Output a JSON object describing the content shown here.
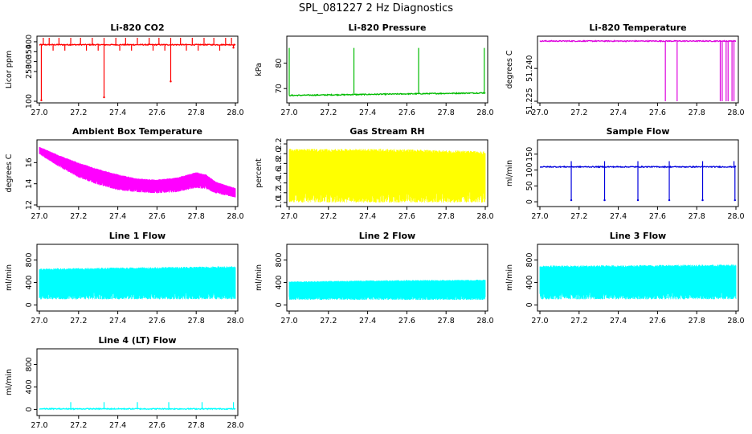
{
  "main_title": "SPL_081227  2 Hz Diagnostics",
  "chart_data": [
    {
      "type": "line",
      "title": "Li-820 CO2",
      "ylabel": "Licor ppm",
      "color": "#ff0000",
      "xlim": [
        27.0,
        28.0
      ],
      "ylim": [
        100,
        420
      ],
      "x_ticks": [
        "27.0",
        "27.2",
        "27.4",
        "27.6",
        "27.8",
        "28.0"
      ],
      "y_ticks": [
        100,
        250,
        300,
        350,
        400
      ],
      "y_tick_labels": [
        "100",
        "250",
        "300",
        "350",
        "400"
      ],
      "style": "baseline_with_spikes",
      "series": [
        {
          "name": "Li-820 CO2",
          "baseline": 385,
          "upper_spikes": [
            27.02,
            27.05,
            27.1,
            27.16,
            27.21,
            27.27,
            27.33,
            27.39,
            27.44,
            27.5,
            27.56,
            27.61,
            27.67,
            27.72,
            27.78,
            27.84,
            27.89,
            27.95,
            27.98
          ],
          "upper_spike_value": 420,
          "lower_spikes": [
            27.07,
            27.13,
            27.24,
            27.3,
            27.41,
            27.47,
            27.58,
            27.64,
            27.75,
            27.81,
            27.92
          ],
          "lower_spike_value": 355,
          "deep_dips": [
            [
              27.01,
              105
            ],
            [
              27.33,
              120
            ],
            [
              27.67,
              200
            ],
            [
              27.99,
              370
            ]
          ]
        }
      ]
    },
    {
      "type": "line",
      "title": "Li-820 Pressure",
      "ylabel": "kPa",
      "color": "#00bb00",
      "xlim": [
        27.0,
        28.0
      ],
      "ylim": [
        65,
        90
      ],
      "x_ticks": [
        "27.0",
        "27.2",
        "27.4",
        "27.6",
        "27.8",
        "28.0"
      ],
      "y_ticks": [
        70,
        80
      ],
      "y_tick_labels": [
        "70",
        "80"
      ],
      "style": "baseline_with_spikes",
      "series": [
        {
          "name": "Li-820 Pressure",
          "baseline": 67.3,
          "baseline_end": 68.3,
          "upper_spikes": [
            27.0,
            27.33,
            27.66,
            27.995
          ],
          "upper_spike_value": 86,
          "lower_spikes": [],
          "lower_spike_value": 67,
          "deep_dips": []
        }
      ]
    },
    {
      "type": "line",
      "title": "Li-820 Temperature",
      "ylabel": "degrees C",
      "color": "#dd00dd",
      "xlim": [
        27.0,
        28.0
      ],
      "ylim": [
        51.225,
        51.254
      ],
      "x_ticks": [
        "27.0",
        "27.2",
        "27.4",
        "27.6",
        "27.8",
        "28.0"
      ],
      "y_ticks": [
        51.225,
        51.24
      ],
      "y_tick_labels": [
        "51.225",
        "51.240"
      ],
      "style": "baseline_with_spikes",
      "series": [
        {
          "name": "Li-820 Temperature",
          "baseline": 51.2525,
          "upper_spikes": [],
          "upper_spike_value": 51.2525,
          "lower_spikes": [
            27.64,
            27.7,
            27.92,
            27.93,
            27.95,
            27.96,
            27.98,
            27.99
          ],
          "lower_spike_value": 51.225,
          "deep_dips": []
        }
      ]
    },
    {
      "type": "area",
      "title": "Ambient Box Temperature",
      "ylabel": "degrees C",
      "color": "#ff00ff",
      "xlim": [
        27.0,
        28.0
      ],
      "ylim": [
        12,
        18
      ],
      "x_ticks": [
        "27.0",
        "27.2",
        "27.4",
        "27.6",
        "27.8",
        "28.0"
      ],
      "y_ticks": [
        12,
        14,
        16
      ],
      "y_tick_labels": [
        "12",
        "14",
        "16"
      ],
      "style": "band",
      "series": [
        {
          "name": "Ambient Box Temperature",
          "x": [
            27.0,
            27.1,
            27.2,
            27.3,
            27.4,
            27.5,
            27.6,
            27.7,
            27.8,
            27.85,
            27.9,
            28.0
          ],
          "upper": [
            17.5,
            16.7,
            16.0,
            15.4,
            14.9,
            14.5,
            14.4,
            14.6,
            15.1,
            14.9,
            14.2,
            13.6
          ],
          "lower": [
            16.8,
            15.6,
            14.6,
            13.9,
            13.4,
            13.2,
            13.1,
            13.2,
            13.6,
            13.5,
            13.1,
            12.7
          ]
        }
      ]
    },
    {
      "type": "area",
      "title": "Gas Stream RH",
      "ylabel": "percent",
      "color": "#ffff00",
      "xlim": [
        27.0,
        28.0
      ],
      "ylim": [
        0.95,
        2.25
      ],
      "x_ticks": [
        "27.0",
        "27.2",
        "27.4",
        "27.6",
        "27.8",
        "28.0"
      ],
      "y_ticks": [
        1.0,
        1.2,
        1.4,
        1.6,
        1.8,
        2.0,
        2.2
      ],
      "y_tick_labels": [
        "1.0",
        "1.2",
        "1.4",
        "1.6",
        "1.8",
        "2.0",
        "2.2"
      ],
      "style": "band",
      "series": [
        {
          "name": "Gas Stream RH",
          "x": [
            27.0,
            27.5,
            28.0
          ],
          "upper": [
            2.1,
            2.1,
            2.05
          ],
          "lower": [
            1.0,
            1.0,
            1.0
          ]
        }
      ]
    },
    {
      "type": "line",
      "title": "Sample Flow",
      "ylabel": "ml/min",
      "color": "#0000dd",
      "xlim": [
        27.0,
        28.0
      ],
      "ylim": [
        -10,
        190
      ],
      "x_ticks": [
        "27.0",
        "27.2",
        "27.4",
        "27.6",
        "27.8",
        "28.0"
      ],
      "y_ticks": [
        0,
        50,
        100,
        150
      ],
      "y_tick_labels": [
        "0",
        "50",
        "100",
        "150"
      ],
      "style": "baseline_with_spikes",
      "series": [
        {
          "name": "Sample Flow",
          "baseline": 110,
          "upper_spikes": [
            27.16,
            27.33,
            27.5,
            27.66,
            27.83,
            27.99
          ],
          "upper_spike_value": 128,
          "lower_spikes": [],
          "lower_spike_value": 100,
          "deep_dips": [
            [
              27.16,
              5
            ],
            [
              27.33,
              5
            ],
            [
              27.5,
              5
            ],
            [
              27.66,
              5
            ],
            [
              27.83,
              5
            ],
            [
              27.995,
              5
            ]
          ]
        }
      ]
    },
    {
      "type": "area",
      "title": "Line 1 Flow",
      "ylabel": "ml/min",
      "color": "#00ffff",
      "xlim": [
        27.0,
        28.0
      ],
      "ylim": [
        -80,
        1050
      ],
      "x_ticks": [
        "27.0",
        "27.2",
        "27.4",
        "27.6",
        "27.8",
        "28.0"
      ],
      "y_ticks": [
        0,
        400,
        800
      ],
      "y_tick_labels": [
        "0",
        "400",
        "800"
      ],
      "style": "band",
      "series": [
        {
          "name": "Line 1 Flow",
          "x": [
            27.0,
            27.5,
            28.0
          ],
          "upper": [
            650,
            670,
            690
          ],
          "lower": [
            100,
            100,
            100
          ]
        }
      ]
    },
    {
      "type": "area",
      "title": "Line 2 Flow",
      "ylabel": "ml/min",
      "color": "#00ffff",
      "xlim": [
        27.0,
        28.0
      ],
      "ylim": [
        -80,
        1050
      ],
      "x_ticks": [
        "27.0",
        "27.2",
        "27.4",
        "27.6",
        "27.8",
        "28.0"
      ],
      "y_ticks": [
        0,
        400,
        800
      ],
      "y_tick_labels": [
        "0",
        "400",
        "800"
      ],
      "style": "band",
      "series": [
        {
          "name": "Line 2 Flow",
          "x": [
            27.0,
            27.5,
            28.0
          ],
          "upper": [
            420,
            440,
            450
          ],
          "lower": [
            90,
            90,
            90
          ]
        }
      ]
    },
    {
      "type": "area",
      "title": "Line 3 Flow",
      "ylabel": "ml/min",
      "color": "#00ffff",
      "xlim": [
        27.0,
        28.0
      ],
      "ylim": [
        -80,
        1050
      ],
      "x_ticks": [
        "27.0",
        "27.2",
        "27.4",
        "27.6",
        "27.8",
        "28.0"
      ],
      "y_ticks": [
        0,
        400,
        800
      ],
      "y_tick_labels": [
        "0",
        "400",
        "800"
      ],
      "style": "band",
      "series": [
        {
          "name": "Line 3 Flow",
          "x": [
            27.0,
            27.5,
            28.0
          ],
          "upper": [
            700,
            710,
            720
          ],
          "lower": [
            100,
            100,
            100
          ]
        }
      ]
    },
    {
      "type": "line",
      "title": "Line 4 (LT) Flow",
      "ylabel": "ml/min",
      "color": "#00ffff",
      "xlim": [
        27.0,
        28.0
      ],
      "ylim": [
        -80,
        1050
      ],
      "x_ticks": [
        "27.0",
        "27.2",
        "27.4",
        "27.6",
        "27.8",
        "28.0"
      ],
      "y_ticks": [
        0,
        400,
        800
      ],
      "y_tick_labels": [
        "0",
        "400",
        "800"
      ],
      "style": "baseline_with_spikes",
      "series": [
        {
          "name": "Line 4 (LT) Flow",
          "baseline": 10,
          "upper_spikes": [
            27.16,
            27.33,
            27.5,
            27.66,
            27.83,
            27.99
          ],
          "upper_spike_value": 130,
          "lower_spikes": [],
          "lower_spike_value": 10,
          "deep_dips": []
        }
      ]
    }
  ]
}
